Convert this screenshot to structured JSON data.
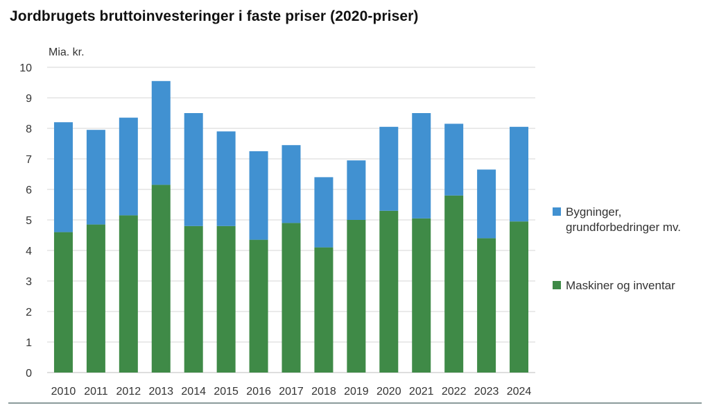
{
  "title": "Jordbrugets bruttoinvesteringer i faste priser (2020-priser)",
  "colors": {
    "maskiner": "#3f8a47",
    "bygninger": "#4191d1",
    "grid": "#d6d6d6"
  },
  "chart_data": {
    "type": "bar",
    "stacked": true,
    "unit_label": "Mia. kr.",
    "categories": [
      "2010",
      "2011",
      "2012",
      "2013",
      "2014",
      "2015",
      "2016",
      "2017",
      "2018",
      "2019",
      "2020",
      "2021",
      "2022",
      "2023",
      "2024"
    ],
    "series": [
      {
        "name": "Maskiner og inventar",
        "color": "#3f8a47",
        "values": [
          4.6,
          4.85,
          5.15,
          6.15,
          4.8,
          4.8,
          4.35,
          4.9,
          4.1,
          5.0,
          5.3,
          5.05,
          5.8,
          4.4,
          4.95
        ]
      },
      {
        "name": "Bygninger, grundforbedringer mv.",
        "name_lines": [
          "Bygninger,",
          "grundforbedringer mv."
        ],
        "color": "#4191d1",
        "values": [
          3.6,
          3.1,
          3.2,
          3.4,
          3.7,
          3.1,
          2.9,
          2.55,
          2.3,
          1.95,
          2.75,
          3.45,
          2.35,
          2.25,
          3.1
        ]
      }
    ],
    "ylim": [
      0,
      10
    ],
    "yticks": [
      0,
      1,
      2,
      3,
      4,
      5,
      6,
      7,
      8,
      9,
      10
    ],
    "grid": true,
    "legend_position": "right"
  }
}
